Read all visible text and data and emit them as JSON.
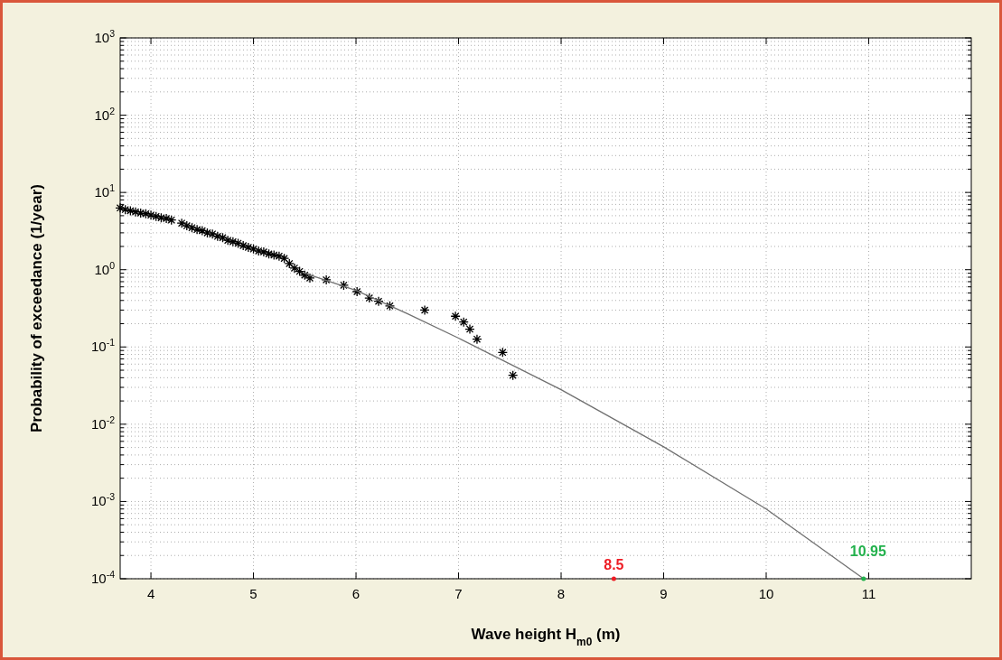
{
  "chart_data": {
    "type": "scatter",
    "xlabel": "Wave height H$_{m0}$ (m)",
    "ylabel": "Probability of exceedance (1/year)",
    "log": "y",
    "grid": true,
    "xlim": [
      3.7,
      12
    ],
    "xticks": [
      4,
      5,
      6,
      7,
      8,
      9,
      10,
      11
    ],
    "ylim": [
      0.0001,
      1000
    ],
    "yticks": [
      {
        "value": 0.0001,
        "label": "10$^{-4}$"
      },
      {
        "value": 0.001,
        "label": "10$^{-3}$"
      },
      {
        "value": 0.01,
        "label": "10$^{-2}$"
      },
      {
        "value": 0.1,
        "label": "10$^{-1}$"
      },
      {
        "value": 1,
        "label": "10$^{0}$"
      },
      {
        "value": 10,
        "label": "10$^{1}$"
      },
      {
        "value": 100,
        "label": "10$^{2}$"
      },
      {
        "value": 1000,
        "label": "10$^{3}$"
      }
    ],
    "series": [
      {
        "color": "#000000",
        "marker": "cross",
        "x": [
          3.7,
          3.75,
          3.8,
          3.85,
          3.9,
          3.95,
          4.0,
          4.05,
          4.1,
          4.15,
          4.2,
          4.3,
          4.35,
          4.4,
          4.45,
          4.5,
          4.55,
          4.6,
          4.65,
          4.7,
          4.75,
          4.8,
          4.85,
          4.9,
          4.95,
          5.0,
          5.05,
          5.1,
          5.15,
          5.2,
          5.25,
          5.3,
          5.35,
          5.4,
          5.45,
          5.5,
          5.55,
          5.71,
          5.88,
          6.01,
          6.13,
          6.22,
          6.33,
          6.67,
          6.97,
          7.05,
          7.11,
          7.18,
          7.43,
          7.53
        ],
        "values": [
          6.3,
          6.0,
          5.8,
          5.6,
          5.4,
          5.3,
          5.1,
          4.9,
          4.7,
          4.6,
          4.4,
          4.0,
          3.7,
          3.5,
          3.3,
          3.2,
          3.0,
          2.9,
          2.7,
          2.6,
          2.4,
          2.3,
          2.2,
          2.05,
          1.95,
          1.85,
          1.75,
          1.7,
          1.6,
          1.55,
          1.5,
          1.4,
          1.2,
          1.05,
          0.95,
          0.85,
          0.78,
          0.74,
          0.63,
          0.52,
          0.43,
          0.39,
          0.34,
          0.3,
          0.25,
          0.21,
          0.17,
          0.126,
          0.085,
          0.043
        ]
      },
      {
        "type": "line",
        "color": "#707070",
        "x": [
          5.5,
          6,
          6.5,
          7,
          8,
          9,
          10,
          10.95
        ],
        "values": [
          0.9,
          0.54,
          0.27,
          0.13,
          0.028,
          0.0051,
          0.0008,
          0.0001
        ]
      }
    ],
    "annotations": [
      "8.5",
      {
        "text": "10.95",
        "x": 10.95,
        "y": 0.0001
      }
    ]
  }
}
